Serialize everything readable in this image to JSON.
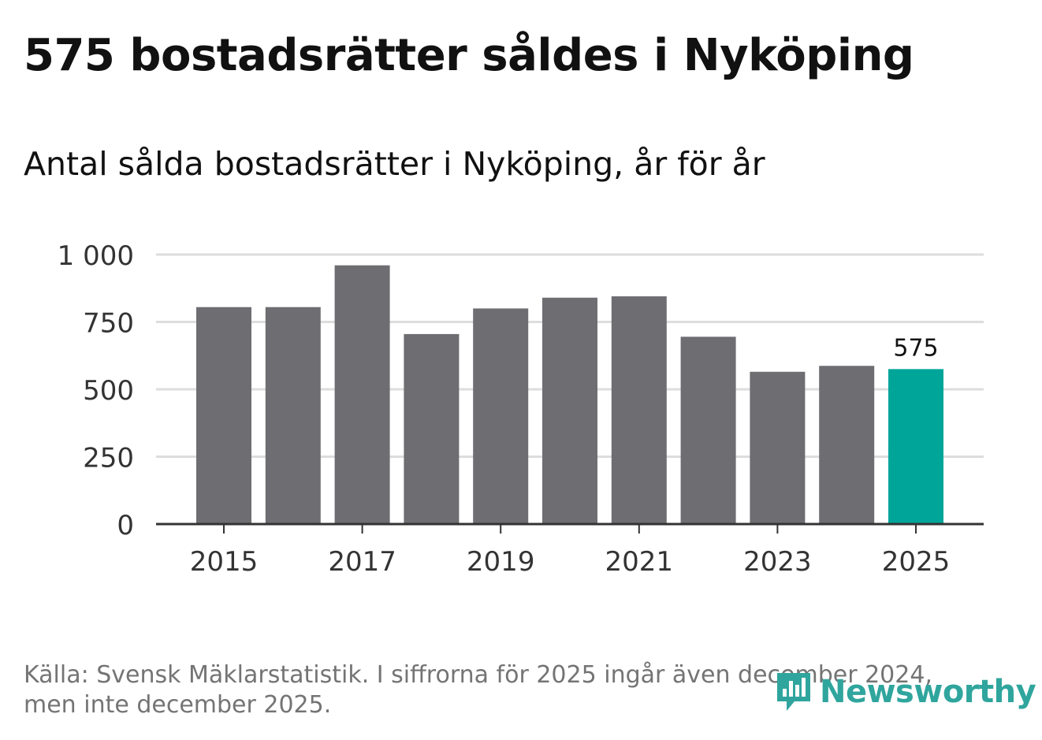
{
  "title": "575 bostadsrätter såldes i Nyköping",
  "subtitle": "Antal sålda bostadsrätter i Nyköping, år för år",
  "source": "Källa: Svensk Mäklarstatistik. I siffrorna för 2025 ingår även december 2024, men inte december 2025.",
  "brand": {
    "name": "Newsworthy",
    "icon": "newsworthy-logo-icon"
  },
  "colors": {
    "bar": "#6e6d72",
    "highlight": "#00a59a",
    "grid": "#dddddd",
    "axis": "#333333"
  },
  "chart_data": {
    "type": "bar",
    "x": [
      2015,
      2016,
      2017,
      2018,
      2019,
      2020,
      2021,
      2022,
      2023,
      2024,
      2025
    ],
    "values": [
      805,
      805,
      960,
      705,
      800,
      840,
      845,
      695,
      565,
      587,
      575
    ],
    "highlight_index": 10,
    "data_labels": [
      {
        "index": 10,
        "text": "575"
      }
    ],
    "yticks": [
      0,
      250,
      500,
      750,
      1000
    ],
    "ytick_labels": [
      "0",
      "250",
      "500",
      "750",
      "1 000"
    ],
    "xticks": [
      2015,
      2017,
      2019,
      2021,
      2023,
      2025
    ],
    "xtick_labels": [
      "2015",
      "2017",
      "2019",
      "2021",
      "2023",
      "2025"
    ],
    "ylim": [
      0,
      1000
    ],
    "xlabel": "",
    "ylabel": "",
    "grid": true
  }
}
